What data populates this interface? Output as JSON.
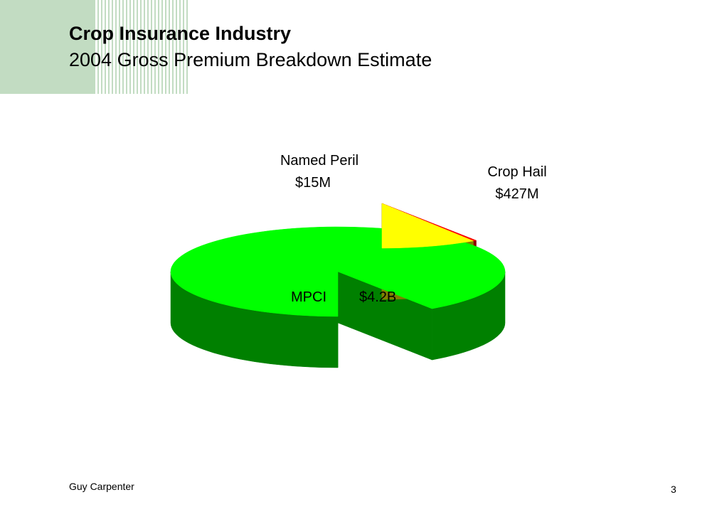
{
  "header": {
    "title": "Crop Insurance Industry",
    "subtitle": "2004 Gross Premium Breakdown Estimate"
  },
  "chart_data": {
    "type": "pie",
    "title": "Crop Insurance Industry",
    "subtitle": "2004 Gross Premium Breakdown Estimate",
    "slices": [
      {
        "name": "MPCI",
        "value_label": "$4.2B",
        "value": 4200,
        "unit": "$M",
        "color": "#00ff00",
        "side_color": "#008000",
        "exploded": false
      },
      {
        "name": "Named Peril",
        "value_label": "$15M",
        "value": 15,
        "unit": "$M",
        "color": "#ff0000",
        "side_color": "#8b0000",
        "exploded": true
      },
      {
        "name": "Crop Hail",
        "value_label": "$427M",
        "value": 427,
        "unit": "$M",
        "color": "#ffff00",
        "side_color": "#808000",
        "exploded": true
      }
    ],
    "style": "3d-exploded-pie"
  },
  "footer": {
    "company": "Guy Carpenter",
    "page_number": "3"
  }
}
